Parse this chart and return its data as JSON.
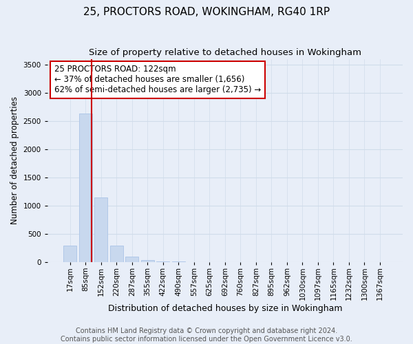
{
  "title": "25, PROCTORS ROAD, WOKINGHAM, RG40 1RP",
  "subtitle": "Size of property relative to detached houses in Wokingham",
  "xlabel": "Distribution of detached houses by size in Wokingham",
  "ylabel": "Number of detached properties",
  "footer_line1": "Contains HM Land Registry data © Crown copyright and database right 2024.",
  "footer_line2": "Contains public sector information licensed under the Open Government Licence v3.0.",
  "categories": [
    "17sqm",
    "85sqm",
    "152sqm",
    "220sqm",
    "287sqm",
    "355sqm",
    "422sqm",
    "490sqm",
    "557sqm",
    "625sqm",
    "692sqm",
    "760sqm",
    "827sqm",
    "895sqm",
    "962sqm",
    "1030sqm",
    "1097sqm",
    "1165sqm",
    "1232sqm",
    "1300sqm",
    "1367sqm"
  ],
  "values": [
    290,
    2630,
    1140,
    290,
    100,
    35,
    15,
    5,
    3,
    2,
    0,
    0,
    0,
    0,
    0,
    0,
    0,
    0,
    0,
    0,
    0
  ],
  "bar_color": "#c8d8ee",
  "bar_edge_color": "#b0c8e8",
  "grid_color": "#d0dcea",
  "vline_x_idx": 1,
  "vline_color": "#cc0000",
  "annotation_text": "25 PROCTORS ROAD: 122sqm\n← 37% of detached houses are smaller (1,656)\n62% of semi-detached houses are larger (2,735) →",
  "annotation_box_color": "white",
  "annotation_box_edgecolor": "#cc0000",
  "ylim": [
    0,
    3600
  ],
  "yticks": [
    0,
    500,
    1000,
    1500,
    2000,
    2500,
    3000,
    3500
  ],
  "title_fontsize": 11,
  "subtitle_fontsize": 9.5,
  "xlabel_fontsize": 9,
  "ylabel_fontsize": 8.5,
  "tick_fontsize": 7.5,
  "annotation_fontsize": 8.5,
  "footer_fontsize": 7,
  "background_color": "#e8eef8"
}
